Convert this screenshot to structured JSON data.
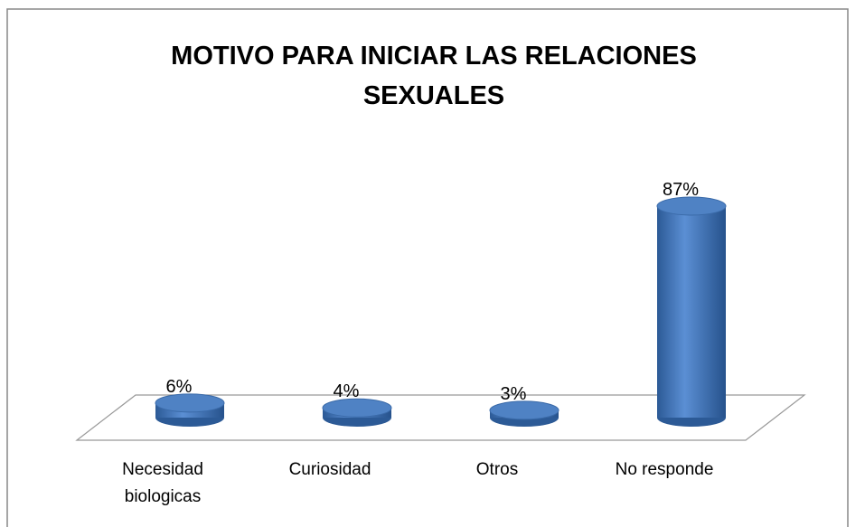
{
  "chart_data": {
    "type": "bar3d",
    "title": "MOTIVO PARA INICIAR LAS RELACIONES SEXUALES",
    "categories": [
      "Necesidad biologicas",
      "Curiosidad",
      "Otros",
      "No responde"
    ],
    "values": [
      6,
      4,
      3,
      87
    ],
    "value_labels": [
      "6%",
      "4%",
      "3%",
      "87%"
    ],
    "color": "#4a7ebb"
  }
}
